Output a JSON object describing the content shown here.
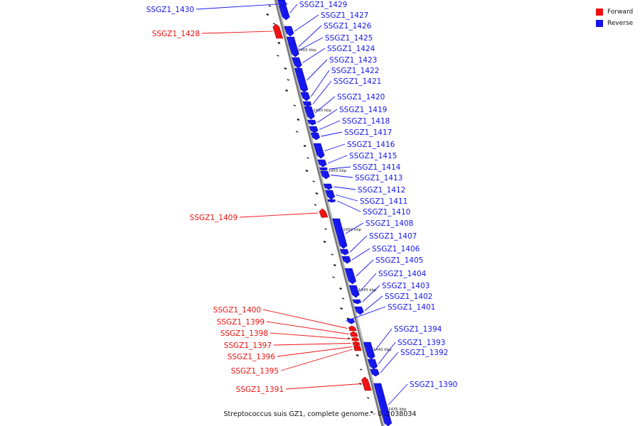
{
  "colors": {
    "forward": "#ee1111",
    "reverse": "#1515ee",
    "backbone": "#777777"
  },
  "legend": [
    {
      "label": "Forward",
      "strand": "forward"
    },
    {
      "label": "Reverse",
      "strand": "reverse"
    }
  ],
  "caption": "Streptococcus suis GZ1, complete genome. - 0..2038034",
  "ticks": [
    "1465 kbp",
    "1460 kbp",
    "1455 kbp",
    "1450 kbp",
    "1445 kbp",
    "1440 kbp",
    "1435 kbp"
  ],
  "genes": [
    {
      "label": "SSGZ1_1430",
      "strand": "reverse"
    },
    {
      "label": "SSGZ1_1429",
      "strand": "reverse"
    },
    {
      "label": "SSGZ1_1428",
      "strand": "forward"
    },
    {
      "label": "SSGZ1_1427",
      "strand": "reverse"
    },
    {
      "label": "SSGZ1_1426",
      "strand": "reverse"
    },
    {
      "label": "SSGZ1_1425",
      "strand": "reverse"
    },
    {
      "label": "SSGZ1_1424",
      "strand": "reverse"
    },
    {
      "label": "SSGZ1_1423",
      "strand": "reverse"
    },
    {
      "label": "SSGZ1_1422",
      "strand": "reverse"
    },
    {
      "label": "SSGZ1_1421",
      "strand": "reverse"
    },
    {
      "label": "SSGZ1_1420",
      "strand": "reverse"
    },
    {
      "label": "SSGZ1_1419",
      "strand": "reverse"
    },
    {
      "label": "SSGZ1_1418",
      "strand": "reverse"
    },
    {
      "label": "SSGZ1_1417",
      "strand": "reverse"
    },
    {
      "label": "SSGZ1_1416",
      "strand": "reverse"
    },
    {
      "label": "SSGZ1_1415",
      "strand": "reverse"
    },
    {
      "label": "SSGZ1_1414",
      "strand": "reverse"
    },
    {
      "label": "SSGZ1_1413",
      "strand": "reverse"
    },
    {
      "label": "SSGZ1_1412",
      "strand": "reverse"
    },
    {
      "label": "SSGZ1_1411",
      "strand": "reverse"
    },
    {
      "label": "SSGZ1_1410",
      "strand": "reverse"
    },
    {
      "label": "SSGZ1_1409",
      "strand": "forward"
    },
    {
      "label": "SSGZ1_1408",
      "strand": "reverse"
    },
    {
      "label": "SSGZ1_1407",
      "strand": "reverse"
    },
    {
      "label": "SSGZ1_1406",
      "strand": "reverse"
    },
    {
      "label": "SSGZ1_1405",
      "strand": "reverse"
    },
    {
      "label": "SSGZ1_1404",
      "strand": "reverse"
    },
    {
      "label": "SSGZ1_1403",
      "strand": "reverse"
    },
    {
      "label": "SSGZ1_1402",
      "strand": "reverse"
    },
    {
      "label": "SSGZ1_1401",
      "strand": "reverse"
    },
    {
      "label": "SSGZ1_1400",
      "strand": "forward"
    },
    {
      "label": "SSGZ1_1399",
      "strand": "forward"
    },
    {
      "label": "SSGZ1_1398",
      "strand": "forward"
    },
    {
      "label": "SSGZ1_1397",
      "strand": "forward"
    },
    {
      "label": "SSGZ1_1396",
      "strand": "forward"
    },
    {
      "label": "SSGZ1_1395",
      "strand": "forward"
    },
    {
      "label": "SSGZ1_1394",
      "strand": "reverse"
    },
    {
      "label": "SSGZ1_1393",
      "strand": "reverse"
    },
    {
      "label": "SSGZ1_1392",
      "strand": "reverse"
    },
    {
      "label": "SSGZ1_1391",
      "strand": "forward"
    },
    {
      "label": "SSGZ1_1390",
      "strand": "reverse"
    }
  ]
}
